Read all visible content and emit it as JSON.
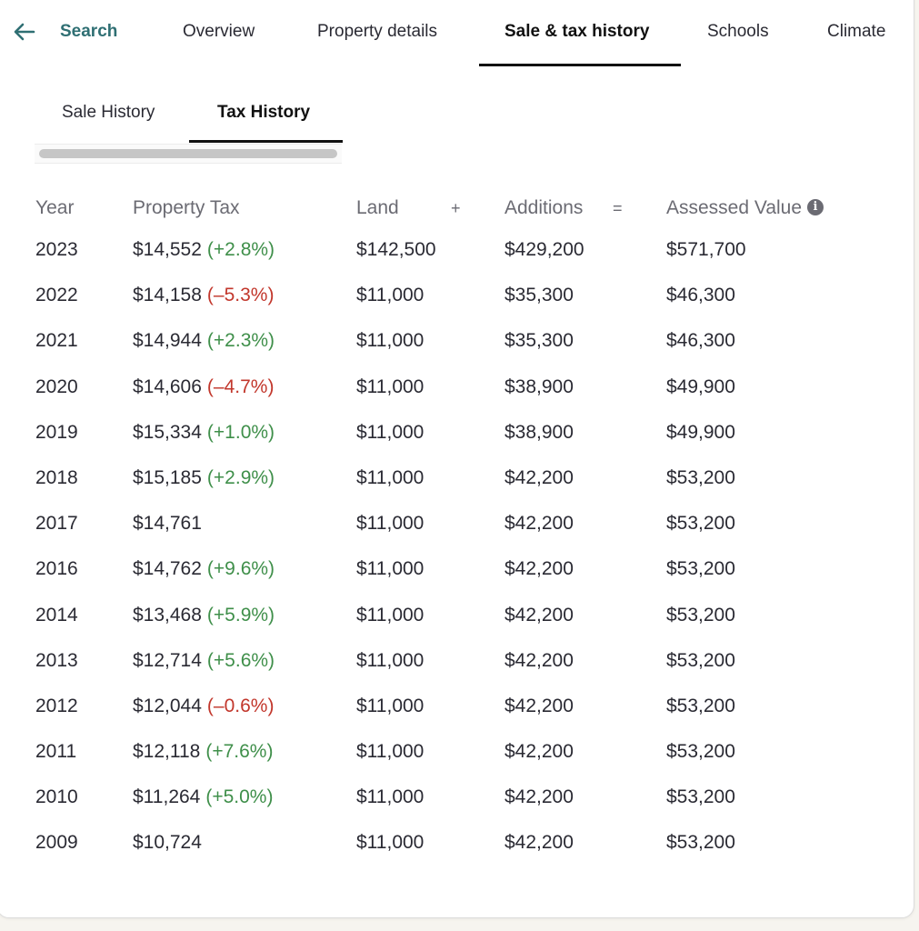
{
  "nav": {
    "back_label": "Search",
    "tabs": [
      "Overview",
      "Property details",
      "Sale & tax history",
      "Schools",
      "Climate"
    ],
    "active_tab": "Sale & tax history"
  },
  "subtabs": {
    "sale_history": "Sale History",
    "tax_history": "Tax History",
    "active": "Tax History"
  },
  "table": {
    "headers": {
      "year": "Year",
      "property_tax": "Property Tax",
      "land": "Land",
      "plus": "+",
      "additions": "Additions",
      "equals": "=",
      "assessed_value": "Assessed Value"
    },
    "rows": [
      {
        "year": "2023",
        "tax": "$14,552",
        "change": "(+2.8%)",
        "dir": "up",
        "land": "$142,500",
        "additions": "$429,200",
        "assessed": "$571,700"
      },
      {
        "year": "2022",
        "tax": "$14,158",
        "change": "(–5.3%)",
        "dir": "down",
        "land": "$11,000",
        "additions": "$35,300",
        "assessed": "$46,300"
      },
      {
        "year": "2021",
        "tax": "$14,944",
        "change": "(+2.3%)",
        "dir": "up",
        "land": "$11,000",
        "additions": "$35,300",
        "assessed": "$46,300"
      },
      {
        "year": "2020",
        "tax": "$14,606",
        "change": "(–4.7%)",
        "dir": "down",
        "land": "$11,000",
        "additions": "$38,900",
        "assessed": "$49,900"
      },
      {
        "year": "2019",
        "tax": "$15,334",
        "change": "(+1.0%)",
        "dir": "up",
        "land": "$11,000",
        "additions": "$38,900",
        "assessed": "$49,900"
      },
      {
        "year": "2018",
        "tax": "$15,185",
        "change": "(+2.9%)",
        "dir": "up",
        "land": "$11,000",
        "additions": "$42,200",
        "assessed": "$53,200"
      },
      {
        "year": "2017",
        "tax": "$14,761",
        "change": "",
        "dir": "none",
        "land": "$11,000",
        "additions": "$42,200",
        "assessed": "$53,200"
      },
      {
        "year": "2016",
        "tax": "$14,762",
        "change": "(+9.6%)",
        "dir": "up",
        "land": "$11,000",
        "additions": "$42,200",
        "assessed": "$53,200"
      },
      {
        "year": "2014",
        "tax": "$13,468",
        "change": "(+5.9%)",
        "dir": "up",
        "land": "$11,000",
        "additions": "$42,200",
        "assessed": "$53,200"
      },
      {
        "year": "2013",
        "tax": "$12,714",
        "change": "(+5.6%)",
        "dir": "up",
        "land": "$11,000",
        "additions": "$42,200",
        "assessed": "$53,200"
      },
      {
        "year": "2012",
        "tax": "$12,044",
        "change": "(–0.6%)",
        "dir": "down",
        "land": "$11,000",
        "additions": "$42,200",
        "assessed": "$53,200"
      },
      {
        "year": "2011",
        "tax": "$12,118",
        "change": "(+7.6%)",
        "dir": "up",
        "land": "$11,000",
        "additions": "$42,200",
        "assessed": "$53,200"
      },
      {
        "year": "2010",
        "tax": "$11,264",
        "change": "(+5.0%)",
        "dir": "up",
        "land": "$11,000",
        "additions": "$42,200",
        "assessed": "$53,200"
      },
      {
        "year": "2009",
        "tax": "$10,724",
        "change": "",
        "dir": "none",
        "land": "$11,000",
        "additions": "$42,200",
        "assessed": "$53,200"
      }
    ]
  },
  "colors": {
    "accent": "#2f6f73",
    "increase": "#3f8f4a",
    "decrease": "#c2372c"
  },
  "icons": {
    "back": "arrow-left-icon",
    "info": "info-icon"
  }
}
